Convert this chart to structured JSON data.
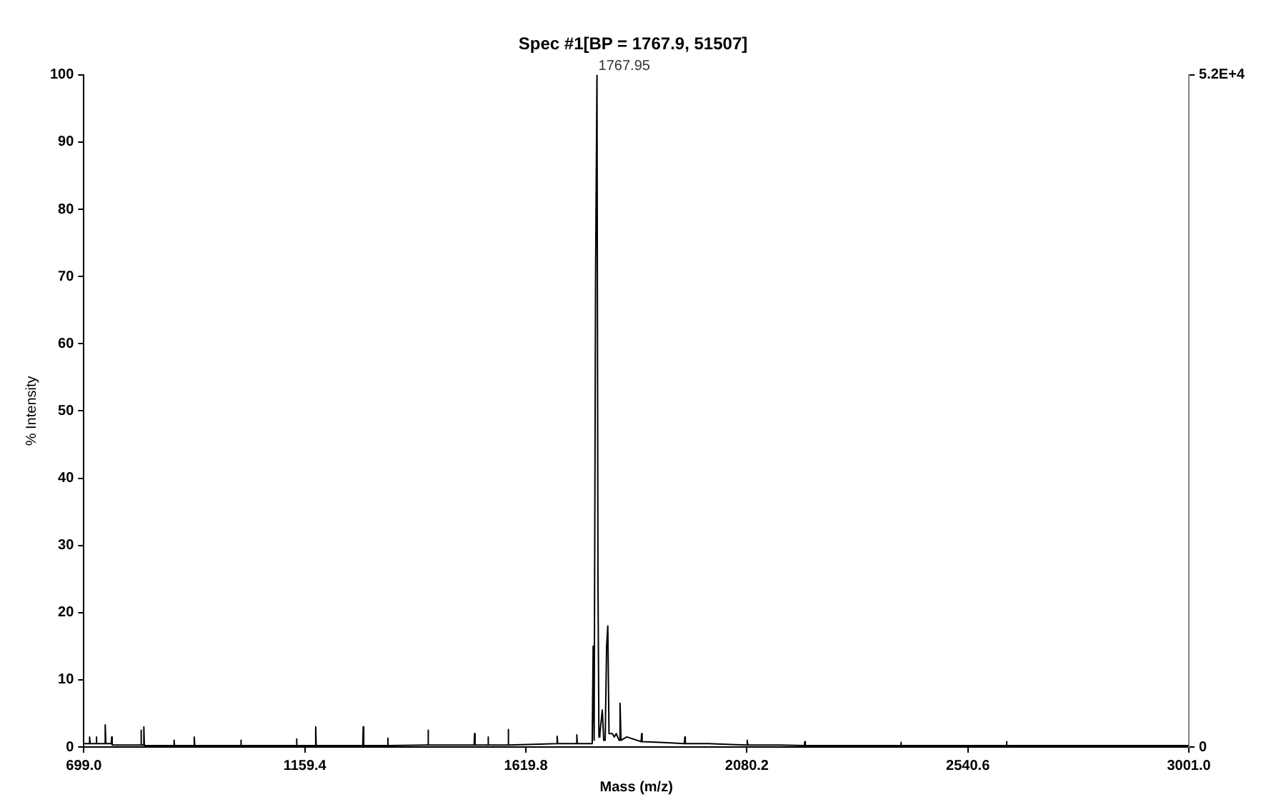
{
  "chart_data": {
    "type": "line",
    "title": "Spec #1[BP = 1767.9, 51507]",
    "xlabel": "Mass (m/z)",
    "ylabel": "% Intensity",
    "annotations": [
      {
        "text": "1767.95",
        "x": 1767.95,
        "y": 100
      }
    ],
    "xlim": [
      699,
      3001
    ],
    "xticks": [
      {
        "value": 699,
        "label": "699.0"
      },
      {
        "value": 1159.4,
        "label": "1159.4"
      },
      {
        "value": 1619.8,
        "label": "1619.8"
      },
      {
        "value": 2080.2,
        "label": "2080.2"
      },
      {
        "value": 2540.6,
        "label": "2540.6"
      },
      {
        "value": 3001,
        "label": "3001.0"
      }
    ],
    "ylim": [
      0,
      100
    ],
    "yticks": [
      0,
      10,
      20,
      30,
      40,
      50,
      60,
      70,
      80,
      90,
      100
    ],
    "y2lim": [
      0,
      52000
    ],
    "y2ticks": [
      0,
      {
        "value": 52000,
        "label": "5.2E+4"
      }
    ],
    "grid": false,
    "legend": false,
    "marker": "none",
    "line_style": "solid",
    "series": [
      {
        "color": "#000000",
        "x": [
          699,
          710,
          711,
          712,
          724,
          725,
          726,
          742,
          743.5,
          745,
          756,
          757,
          758,
          817,
          818,
          819,
          823,
          824,
          825,
          886,
          887,
          888,
          928,
          929,
          930,
          1025,
          1026,
          1027,
          1141,
          1142,
          1143,
          1181,
          1182,
          1183,
          1280,
          1281,
          1282,
          1331,
          1332,
          1333,
          1415,
          1416,
          1417,
          1512,
          1513,
          1514,
          1540,
          1541,
          1542,
          1582,
          1583,
          1584,
          1684,
          1685,
          1686,
          1725,
          1726,
          1727,
          1758,
          1760,
          1762,
          1765,
          1767.95,
          1770,
          1772,
          1774,
          1779,
          1782,
          1785,
          1788,
          1790.5,
          1793,
          1800,
          1804,
          1808,
          1814,
          1816,
          1818,
          1830,
          1860,
          1861,
          1862,
          1900,
          1950,
          1951,
          1952,
          2000,
          2080,
          2081,
          2082,
          2150,
          2200,
          2201,
          2202,
          2300,
          2400,
          2401,
          2402,
          2500,
          2620,
          2621,
          2622,
          2750,
          2900,
          3001
        ],
        "values": [
          0.5,
          0.5,
          1.5,
          0.5,
          0.5,
          1.5,
          0.5,
          0.5,
          3.3,
          0.5,
          0.5,
          1.5,
          0.3,
          0.3,
          2.5,
          0.3,
          0.3,
          3,
          0.2,
          0.2,
          1,
          0.2,
          0.2,
          1.5,
          0.2,
          0.2,
          1,
          0.2,
          0.2,
          1.2,
          0.2,
          0.2,
          3,
          0.2,
          0.2,
          3,
          0.2,
          0.2,
          1.3,
          0.2,
          0.3,
          2.5,
          0.3,
          0.3,
          2,
          0.3,
          0.3,
          1.5,
          0.3,
          0.3,
          2.6,
          0.3,
          0.5,
          1.6,
          0.5,
          0.5,
          1.8,
          0.5,
          0.5,
          15,
          1,
          70,
          100,
          25,
          1.5,
          2,
          5.5,
          1,
          1,
          15,
          18,
          2,
          2,
          1.5,
          2,
          1,
          6.5,
          1,
          1.5,
          0.8,
          2,
          0.8,
          0.7,
          0.5,
          1.5,
          0.5,
          0.5,
          0.3,
          1,
          0.3,
          0.3,
          0.2,
          0.8,
          0.2,
          0.2,
          0.2,
          0.7,
          0.2,
          0.2,
          0.2,
          0.8,
          0.2,
          0.2,
          0.2,
          0.2
        ]
      }
    ]
  }
}
